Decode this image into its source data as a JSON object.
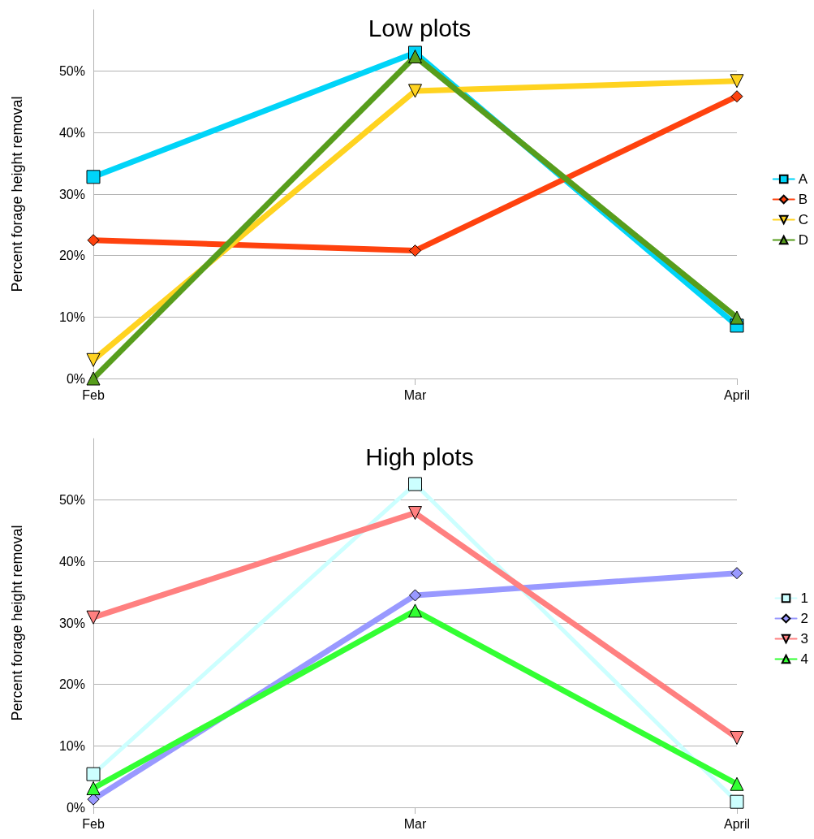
{
  "chart_data": [
    {
      "type": "line",
      "title": "Low plots",
      "ylabel": "Percent forage height removal",
      "categories": [
        "Feb",
        "Mar",
        "April"
      ],
      "ylim": [
        0,
        60
      ],
      "yticks": [
        {
          "value": 0,
          "label": "0%"
        },
        {
          "value": 10,
          "label": "10%"
        },
        {
          "value": 20,
          "label": "20%"
        },
        {
          "value": 30,
          "label": "30%"
        },
        {
          "value": 40,
          "label": "40%"
        },
        {
          "value": 50,
          "label": "50%"
        }
      ],
      "grid": "y",
      "legend": "right",
      "series": [
        {
          "name": "A",
          "color": "#00d4f8",
          "marker": "square",
          "values": [
            32.8,
            53,
            8.6
          ]
        },
        {
          "name": "B",
          "color": "#ff420e",
          "marker": "diamond",
          "values": [
            22.5,
            20.8,
            45.9
          ]
        },
        {
          "name": "C",
          "color": "#ffd320",
          "marker": "triangle-down",
          "values": [
            3,
            46.8,
            48.4
          ]
        },
        {
          "name": "D",
          "color": "#579d1c",
          "marker": "triangle",
          "values": [
            0,
            52.4,
            9.9
          ]
        }
      ]
    },
    {
      "type": "line",
      "title": "High plots",
      "ylabel": "Percent forage height removal",
      "categories": [
        "Feb",
        "Mar",
        "April"
      ],
      "ylim": [
        0,
        60
      ],
      "yticks": [
        {
          "value": 0,
          "label": "0%"
        },
        {
          "value": 10,
          "label": "10%"
        },
        {
          "value": 20,
          "label": "20%"
        },
        {
          "value": 30,
          "label": "30%"
        },
        {
          "value": 40,
          "label": "40%"
        },
        {
          "value": 50,
          "label": "50%"
        }
      ],
      "grid": "y",
      "legend": "right",
      "series": [
        {
          "name": "1",
          "color": "#ccffff",
          "marker": "square",
          "values": [
            5.4,
            52.6,
            0.9
          ]
        },
        {
          "name": "2",
          "color": "#9999ff",
          "marker": "diamond",
          "values": [
            1.3,
            34.5,
            38.1
          ]
        },
        {
          "name": "3",
          "color": "#ff8080",
          "marker": "triangle-down",
          "values": [
            30.9,
            47.9,
            11.3
          ]
        },
        {
          "name": "4",
          "color": "#33ff33",
          "marker": "triangle",
          "values": [
            3.1,
            32,
            3.8
          ]
        }
      ]
    }
  ]
}
